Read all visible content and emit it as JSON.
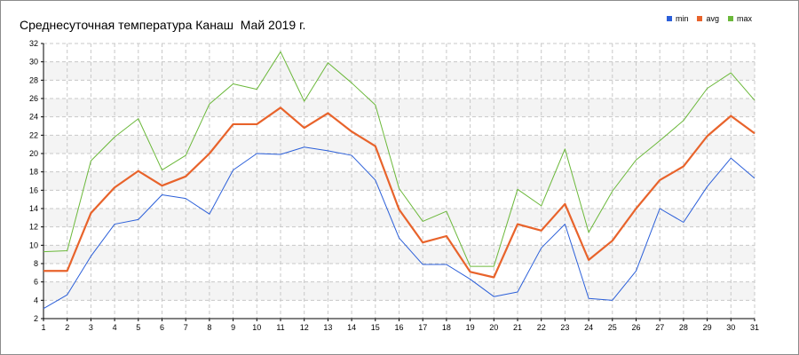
{
  "chart_data": {
    "type": "line",
    "title": "Среднесуточная температура Канаш  Май 2019 г.",
    "xlabel": "",
    "ylabel": "",
    "x": [
      1,
      2,
      3,
      4,
      5,
      6,
      7,
      8,
      9,
      10,
      11,
      12,
      13,
      14,
      15,
      16,
      17,
      18,
      19,
      20,
      21,
      22,
      23,
      24,
      25,
      26,
      27,
      28,
      29,
      30,
      31
    ],
    "x_tick_labels": [
      "1",
      "2",
      "3",
      "4",
      "5",
      "6",
      "7",
      "8",
      "9",
      "10",
      "11",
      "12",
      "13",
      "14",
      "15",
      "16",
      "17",
      "18",
      "19",
      "20",
      "21",
      "22",
      "23",
      "24",
      "25",
      "26",
      "27",
      "28",
      "29",
      "30",
      "31"
    ],
    "ylim": [
      2,
      32
    ],
    "y_ticks": [
      2,
      4,
      6,
      8,
      10,
      12,
      14,
      16,
      18,
      20,
      22,
      24,
      26,
      28,
      30,
      32
    ],
    "y_tick_labels": [
      "2",
      "4",
      "6",
      "8",
      "10",
      "12",
      "14",
      "16",
      "18",
      "20",
      "22",
      "24",
      "26",
      "28",
      "30",
      "32"
    ],
    "grid": true,
    "legend_position": "top-right",
    "series": [
      {
        "name": "min",
        "color": "#2b5fd9",
        "values": [
          3.1,
          4.6,
          8.8,
          12.3,
          12.8,
          15.5,
          15.1,
          13.4,
          18.2,
          20.0,
          19.9,
          20.7,
          20.3,
          19.8,
          17.1,
          10.8,
          7.9,
          7.9,
          6.3,
          4.4,
          4.9,
          9.7,
          12.3,
          4.2,
          4.0,
          7.2,
          14.0,
          12.5,
          16.4,
          19.5,
          17.3
        ]
      },
      {
        "name": "avg",
        "color": "#e8632b",
        "values": [
          7.2,
          7.2,
          13.5,
          16.3,
          18.1,
          16.5,
          17.5,
          20.0,
          23.2,
          23.2,
          25.0,
          22.8,
          24.4,
          22.4,
          20.8,
          13.9,
          10.3,
          11.0,
          7.1,
          6.5,
          12.3,
          11.6,
          14.5,
          8.4,
          10.5,
          14.0,
          17.1,
          18.6,
          21.9,
          24.1,
          22.2
        ]
      },
      {
        "name": "max",
        "color": "#6bb83a",
        "values": [
          9.3,
          9.4,
          19.2,
          21.8,
          23.8,
          18.2,
          19.8,
          25.4,
          27.6,
          27.0,
          31.1,
          25.7,
          29.9,
          27.7,
          25.3,
          16.2,
          12.6,
          13.7,
          7.7,
          7.7,
          16.1,
          14.3,
          20.5,
          11.4,
          15.9,
          19.3,
          21.4,
          23.6,
          27.1,
          28.8,
          25.8
        ]
      }
    ]
  }
}
